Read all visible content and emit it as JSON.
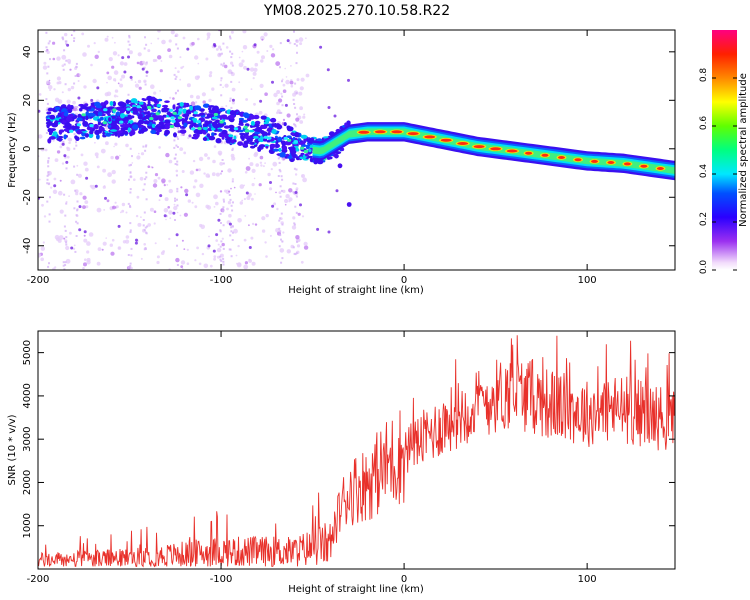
{
  "title": "YM08.2025.270.10.58.R22",
  "chart_data": [
    {
      "type": "heatmap",
      "name": "spectrogram",
      "xlabel": "Height of straight line (km)",
      "ylabel": "Frequency (Hz)",
      "xlim": [
        -200,
        148
      ],
      "ylim": [
        -50,
        49
      ],
      "xticks": [
        -200,
        -100,
        0,
        100
      ],
      "xtick_labels": [
        "-200",
        "-100",
        "0",
        "100"
      ],
      "yticks": [
        -40,
        -20,
        0,
        20,
        40
      ],
      "ytick_labels": [
        "-40",
        "-20",
        "0",
        "20",
        "40"
      ],
      "ridge_x": [
        -195,
        -150,
        -140,
        -100,
        -70,
        -55,
        -45,
        -30,
        -20,
        0,
        20,
        40,
        60,
        80,
        100,
        120,
        148
      ],
      "ridge_y": [
        10,
        13,
        14,
        10,
        5,
        0,
        -1,
        6,
        7,
        7,
        4,
        1,
        -1,
        -3,
        -5,
        -6,
        -9
      ],
      "colorbar": {
        "label": "Normalized spectral amplitude",
        "range": [
          0,
          1
        ],
        "ticks": [
          0.0,
          0.2,
          0.4,
          0.6,
          0.8
        ],
        "tick_labels": [
          "0.0",
          "0.2",
          "0.4",
          "0.6",
          "0.8"
        ]
      }
    },
    {
      "type": "line",
      "name": "snr",
      "xlabel": "Height of straight line (km)",
      "ylabel": "SNR (10 * v/v)",
      "xlim": [
        -200,
        148
      ],
      "ylim": [
        0,
        5500
      ],
      "xticks": [
        -200,
        -100,
        0,
        100
      ],
      "xtick_labels": [
        "-200",
        "-100",
        "0",
        "100"
      ],
      "yticks": [
        1000,
        2000,
        3000,
        4000,
        5000
      ],
      "ytick_labels": [
        "1000",
        "2000",
        "3000",
        "4000",
        "5000"
      ],
      "series": [
        {
          "name": "SNR",
          "color": "#e8302a",
          "x": [
            -200,
            -150,
            -100,
            -60,
            -40,
            -35,
            -30,
            -20,
            -10,
            0,
            10,
            20,
            30,
            40,
            50,
            60,
            70,
            80,
            90,
            100,
            110,
            120,
            130,
            140,
            148
          ],
          "y": [
            200,
            250,
            400,
            400,
            600,
            1400,
            1800,
            2000,
            2400,
            2700,
            3000,
            3300,
            3600,
            3800,
            4000,
            4100,
            4000,
            3800,
            3700,
            3600,
            3700,
            3700,
            3600,
            3500,
            3400
          ]
        }
      ]
    }
  ]
}
